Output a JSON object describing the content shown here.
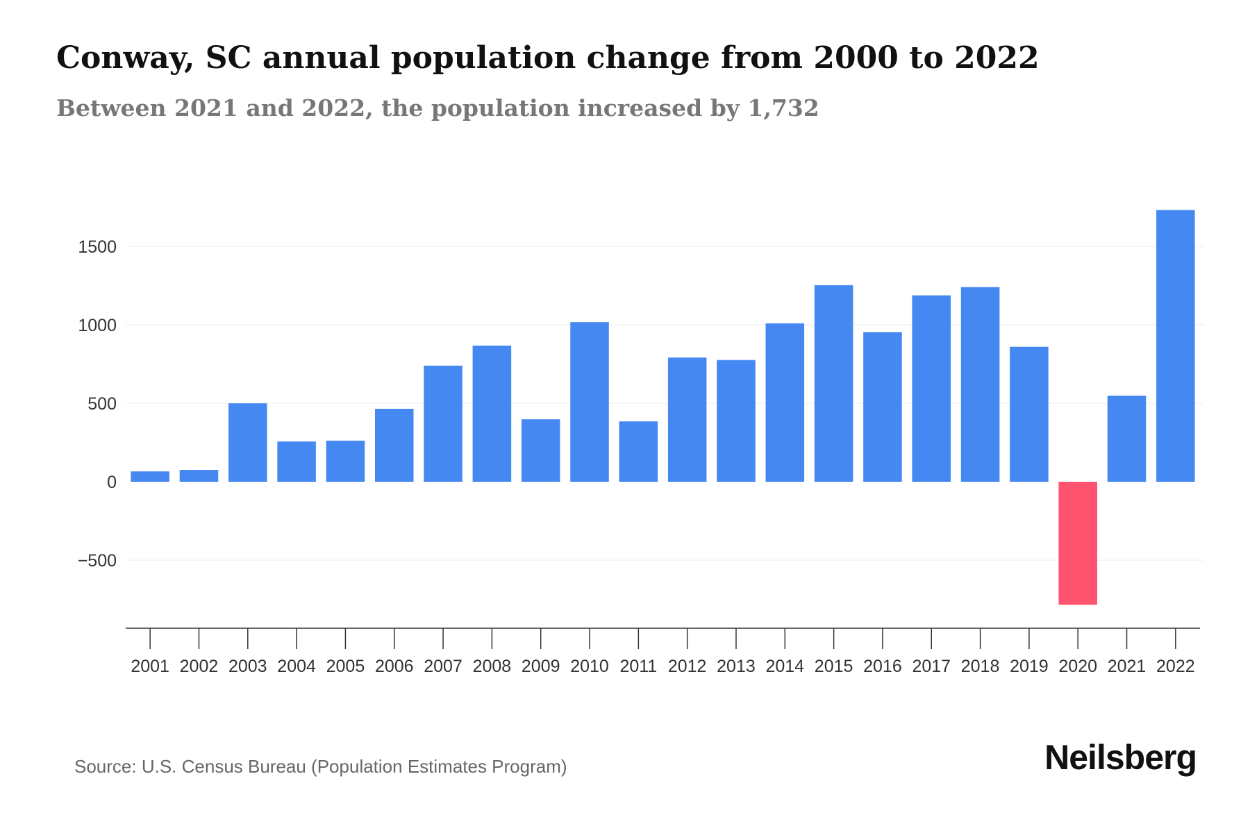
{
  "chart_data": {
    "type": "bar",
    "title": "Conway, SC annual population change from 2000 to 2022",
    "subtitle": "Between 2021 and 2022, the population increased by 1,732",
    "categories": [
      "2001",
      "2002",
      "2003",
      "2004",
      "2005",
      "2006",
      "2007",
      "2008",
      "2009",
      "2010",
      "2011",
      "2012",
      "2013",
      "2014",
      "2015",
      "2016",
      "2017",
      "2018",
      "2019",
      "2020",
      "2021",
      "2022"
    ],
    "values": [
      66,
      75,
      500,
      257,
      262,
      465,
      740,
      868,
      398,
      1017,
      385,
      792,
      776,
      1010,
      1253,
      954,
      1188,
      1241,
      860,
      -784,
      549,
      1732
    ],
    "yticks": [
      -500,
      0,
      500,
      1000,
      1500
    ],
    "ytick_labels": [
      "−500",
      "0",
      "500",
      "1000",
      "1500"
    ],
    "ylim": [
      -930,
      1950
    ],
    "xlabel": "",
    "ylabel": "",
    "grid": true,
    "colors": {
      "positive": "#4688F2",
      "negative": "#FF5470",
      "grid": "#EBEBEB",
      "axis": "#333333"
    }
  },
  "source": "Source: U.S. Census Bureau (Population Estimates Program)",
  "brand": "Neilsberg"
}
